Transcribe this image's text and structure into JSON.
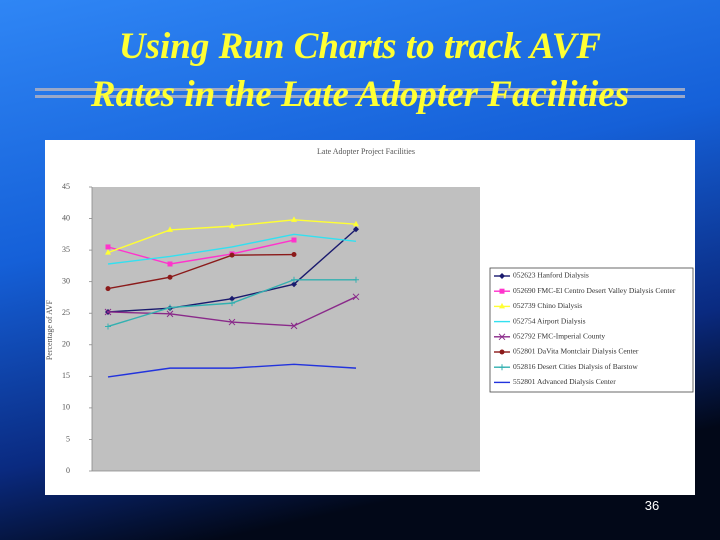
{
  "slide": {
    "title_lines": [
      "Using Run Charts to track AVF",
      "Rates in the Late Adopter Facilities"
    ],
    "page_number": "36"
  },
  "chart_data": {
    "type": "line",
    "title": "Late Adopter Project Facilities",
    "y_label": "Percentage of AVF",
    "categories": [
      null,
      null,
      null,
      null,
      null,
      null,
      null
    ],
    "ylim": [
      0,
      45
    ],
    "yticks": [
      0,
      5,
      10,
      15,
      20,
      25,
      30,
      35,
      40,
      45
    ],
    "legend": "right",
    "series": [
      {
        "name": "052623 Hanford Dialysis",
        "color": "#1a1a6e",
        "marker": "diamond",
        "values": [
          25.2,
          25.8,
          27.3,
          29.6,
          38.3,
          null,
          null
        ]
      },
      {
        "name": "052690 FMC-El Centro Desert Valley Dialysis Center",
        "color": "#ff33cc",
        "marker": "square",
        "values": [
          35.5,
          32.8,
          34.4,
          36.6,
          null,
          null,
          null
        ]
      },
      {
        "name": "052739 Chino Dialysis",
        "color": "#ffff33",
        "marker": "triangle",
        "values": [
          34.6,
          38.2,
          38.8,
          39.8,
          39.1,
          null,
          null
        ]
      },
      {
        "name": "052754 Airport Dialysis",
        "color": "#33e0f0",
        "marker": "none",
        "values": [
          32.8,
          34.0,
          35.5,
          37.5,
          36.4,
          null,
          null
        ]
      },
      {
        "name": "052792 FMC-Imperial County",
        "color": "#8a2a8a",
        "marker": "x",
        "values": [
          25.2,
          24.9,
          23.6,
          23.0,
          27.6,
          null,
          null
        ]
      },
      {
        "name": "052801 DaVita Montclair Dialysis Center",
        "color": "#8b1a1a",
        "marker": "circle",
        "values": [
          28.9,
          30.7,
          34.2,
          34.3,
          null,
          null,
          null
        ]
      },
      {
        "name": "052816 Desert Cities Dialysis of Barstow",
        "color": "#33b0b0",
        "marker": "plus",
        "values": [
          22.9,
          25.9,
          26.6,
          30.3,
          30.3,
          null,
          null
        ]
      },
      {
        "name": "552801 Advanced Dialysis Center",
        "color": "#2233dd",
        "marker": "none",
        "values": [
          14.9,
          16.3,
          16.3,
          16.9,
          16.3,
          null,
          null
        ]
      }
    ]
  }
}
